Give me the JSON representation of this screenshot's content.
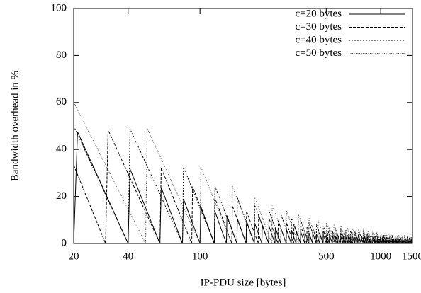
{
  "chart_data": {
    "type": "line",
    "x_label": "IP-PDU size [bytes]",
    "y_label": "Bandwidth overhead in %",
    "xlim": [
      20,
      1500
    ],
    "xticks": [
      20,
      40,
      100,
      500,
      1000,
      1500
    ],
    "x_log": true,
    "ylim": [
      0,
      100
    ],
    "yticks": [
      0,
      20,
      40,
      60,
      80,
      100
    ],
    "legend": "top right",
    "series": [
      {
        "name": "c=20 bytes",
        "color": "#000000",
        "x": [
          20,
          21,
          40,
          41,
          60,
          61,
          80,
          81,
          100,
          101,
          120,
          121,
          140,
          141,
          160,
          161,
          180,
          181,
          200,
          201,
          220,
          221,
          240,
          241,
          260,
          261,
          280,
          281,
          300,
          301,
          320,
          321,
          340,
          341,
          360,
          361,
          380,
          381,
          400,
          401,
          420,
          421,
          440,
          441,
          460,
          461,
          480,
          481,
          500,
          501,
          520,
          521,
          540,
          541,
          560,
          561,
          580,
          581,
          600,
          601,
          620,
          621,
          640,
          641,
          660,
          661,
          680,
          681,
          700,
          701,
          720,
          721,
          740,
          741,
          760,
          761,
          780,
          781,
          800,
          801,
          820,
          821,
          840,
          841,
          860,
          861,
          880,
          881,
          900,
          901,
          920,
          921,
          940,
          941,
          960,
          961,
          980,
          981,
          1000,
          1001,
          1020,
          1021,
          1040,
          1041,
          1060,
          1061,
          1080,
          1081,
          1100,
          1101,
          1120,
          1121,
          1140,
          1141,
          1160,
          1161,
          1180,
          1181,
          1200,
          1201,
          1220,
          1221,
          1240,
          1241,
          1260,
          1261,
          1280,
          1281,
          1300,
          1301,
          1320,
          1321,
          1340,
          1341,
          1360,
          1361,
          1380,
          1381,
          1400,
          1401,
          1420,
          1421,
          1440,
          1441,
          1460,
          1461,
          1480,
          1481,
          1500
        ],
        "values": [
          0,
          47.5,
          0,
          31.7,
          0,
          23.8,
          0,
          19,
          0,
          15.8,
          0,
          13.6,
          0,
          11.9,
          0,
          10.6,
          0,
          9.5,
          0,
          8.6,
          0,
          7.9,
          0,
          7.3,
          0,
          6.8,
          0,
          6.3,
          0,
          5.9,
          0,
          5.6,
          0,
          5.3,
          0,
          5,
          0,
          4.8,
          0,
          4.5,
          0,
          4.3,
          0,
          4.1,
          0,
          4,
          0,
          3.8,
          0,
          3.7,
          0,
          3.5,
          0,
          3.4,
          0,
          3.3,
          0,
          3.2,
          0,
          3.1,
          0,
          3,
          0,
          2.9,
          0,
          2.8,
          0,
          2.7,
          0,
          2.6,
          0,
          2.6,
          0,
          2.5,
          0,
          2.4,
          0,
          2.4,
          0,
          2.3,
          0,
          2.3,
          0,
          2.2,
          0,
          2.2,
          0,
          2.1,
          0,
          2.1,
          0,
          2,
          0,
          2,
          0,
          1.9,
          0,
          1.9,
          0,
          1.9,
          0,
          1.8,
          0,
          1.8,
          0,
          1.8,
          0,
          1.7,
          0,
          1.7,
          0,
          1.7,
          0,
          1.6,
          0,
          1.6,
          0,
          1.6,
          0,
          1.6,
          0,
          1.5,
          0,
          1.5,
          0,
          1.5,
          0,
          1.5,
          0,
          1.4,
          0,
          1.4,
          0,
          1.4,
          0,
          1.4,
          0,
          1.4,
          0,
          1.3,
          0,
          1.3,
          0,
          1.3,
          0,
          1.3,
          0,
          1.3,
          0
        ]
      },
      {
        "name": "c=30 bytes",
        "color": "#000000",
        "x": [
          20,
          30,
          31,
          60,
          61,
          90,
          91,
          120,
          121,
          150,
          151,
          180,
          181,
          210,
          211,
          240,
          241,
          270,
          271,
          300,
          301,
          330,
          331,
          360,
          361,
          390,
          391,
          420,
          421,
          450,
          451,
          480,
          481,
          510,
          511,
          540,
          541,
          570,
          571,
          600,
          601,
          630,
          631,
          660,
          661,
          690,
          691,
          720,
          721,
          750,
          751,
          780,
          781,
          810,
          811,
          840,
          841,
          870,
          871,
          900,
          901,
          930,
          931,
          960,
          961,
          990,
          991,
          1020,
          1021,
          1050,
          1051,
          1080,
          1081,
          1110,
          1111,
          1140,
          1141,
          1170,
          1171,
          1200,
          1201,
          1230,
          1231,
          1260,
          1261,
          1290,
          1291,
          1320,
          1321,
          1350,
          1351,
          1380,
          1381,
          1410,
          1411,
          1440,
          1441,
          1470,
          1471,
          1500
        ],
        "values": [
          33.3,
          0,
          48.3,
          0,
          32.2,
          0,
          24.2,
          0,
          19.3,
          0,
          16.1,
          0,
          13.8,
          0,
          12.1,
          0,
          10.7,
          0,
          9.7,
          0,
          8.8,
          0,
          8.1,
          0,
          7.4,
          0,
          6.9,
          0,
          6.4,
          0,
          6,
          0,
          5.7,
          0,
          5.4,
          0,
          5.1,
          0,
          4.8,
          0,
          4.6,
          0,
          4.4,
          0,
          4.2,
          0,
          4,
          0,
          3.9,
          0,
          3.7,
          0,
          3.6,
          0,
          3.5,
          0,
          3.3,
          0,
          3.2,
          0,
          3.1,
          0,
          3,
          0,
          2.9,
          0,
          2.8,
          0,
          2.8,
          0,
          2.7,
          0,
          2.6,
          0,
          2.5,
          0,
          2.5,
          0,
          2.4,
          0,
          2.4,
          0,
          2.3,
          0,
          2.2,
          0,
          2.2,
          0,
          2.1,
          0,
          2.1,
          0,
          2.1,
          0,
          2,
          0,
          2,
          0,
          1.9,
          0
        ]
      },
      {
        "name": "c=40 bytes",
        "color": "#000000",
        "x": [
          20,
          40,
          41,
          80,
          81,
          120,
          121,
          160,
          161,
          200,
          201,
          240,
          241,
          280,
          281,
          320,
          321,
          360,
          361,
          400,
          401,
          440,
          441,
          480,
          481,
          520,
          521,
          560,
          561,
          600,
          601,
          640,
          641,
          680,
          681,
          720,
          721,
          760,
          761,
          800,
          801,
          840,
          841,
          880,
          881,
          920,
          921,
          960,
          961,
          1000,
          1001,
          1040,
          1041,
          1080,
          1081,
          1120,
          1121,
          1160,
          1161,
          1200,
          1201,
          1240,
          1241,
          1280,
          1281,
          1320,
          1321,
          1360,
          1361,
          1400,
          1401,
          1440,
          1441,
          1480,
          1481,
          1500
        ],
        "values": [
          50,
          0,
          48.8,
          0,
          32.5,
          0,
          24.4,
          0,
          19.5,
          0,
          16.3,
          0,
          13.9,
          0,
          12.2,
          0,
          10.8,
          0,
          9.8,
          0,
          8.9,
          0,
          8.1,
          0,
          7.5,
          0,
          7,
          0,
          6.5,
          0,
          6.1,
          0,
          5.7,
          0,
          5.4,
          0,
          5.1,
          0,
          4.9,
          0,
          4.6,
          0,
          4.4,
          0,
          4.2,
          0,
          4.1,
          0,
          3.9,
          0,
          3.8,
          0,
          3.6,
          0,
          3.5,
          0,
          3.4,
          0,
          3.3,
          0,
          3.1,
          0,
          3,
          0,
          3,
          0,
          2.9,
          0,
          2.8,
          0,
          2.7,
          0,
          2.6,
          0,
          2.6,
          1.3
        ]
      },
      {
        "name": "c=50 bytes",
        "color": "#555555",
        "x": [
          20,
          50,
          51,
          100,
          101,
          150,
          151,
          200,
          201,
          250,
          251,
          300,
          301,
          350,
          351,
          400,
          401,
          450,
          451,
          500,
          501,
          550,
          551,
          600,
          601,
          650,
          651,
          700,
          701,
          750,
          751,
          800,
          801,
          850,
          851,
          900,
          901,
          950,
          951,
          1000,
          1001,
          1050,
          1051,
          1100,
          1101,
          1150,
          1151,
          1200,
          1201,
          1250,
          1251,
          1300,
          1301,
          1350,
          1351,
          1400,
          1401,
          1450,
          1451,
          1500
        ],
        "values": [
          60,
          0,
          49,
          0,
          32.7,
          0,
          24.5,
          0,
          19.6,
          0,
          16.3,
          0,
          14,
          0,
          12.3,
          0,
          10.9,
          0,
          9.8,
          0,
          8.9,
          0,
          8.2,
          0,
          7.5,
          0,
          7,
          0,
          6.5,
          0,
          6.1,
          0,
          5.8,
          0,
          5.4,
          0,
          5.2,
          0,
          4.9,
          0,
          4.7,
          0,
          4.5,
          0,
          4.3,
          0,
          4.1,
          0,
          3.9,
          0,
          3.8,
          0,
          3.6,
          0,
          3.5,
          0,
          3.4,
          0,
          3.3,
          0
        ]
      }
    ]
  }
}
